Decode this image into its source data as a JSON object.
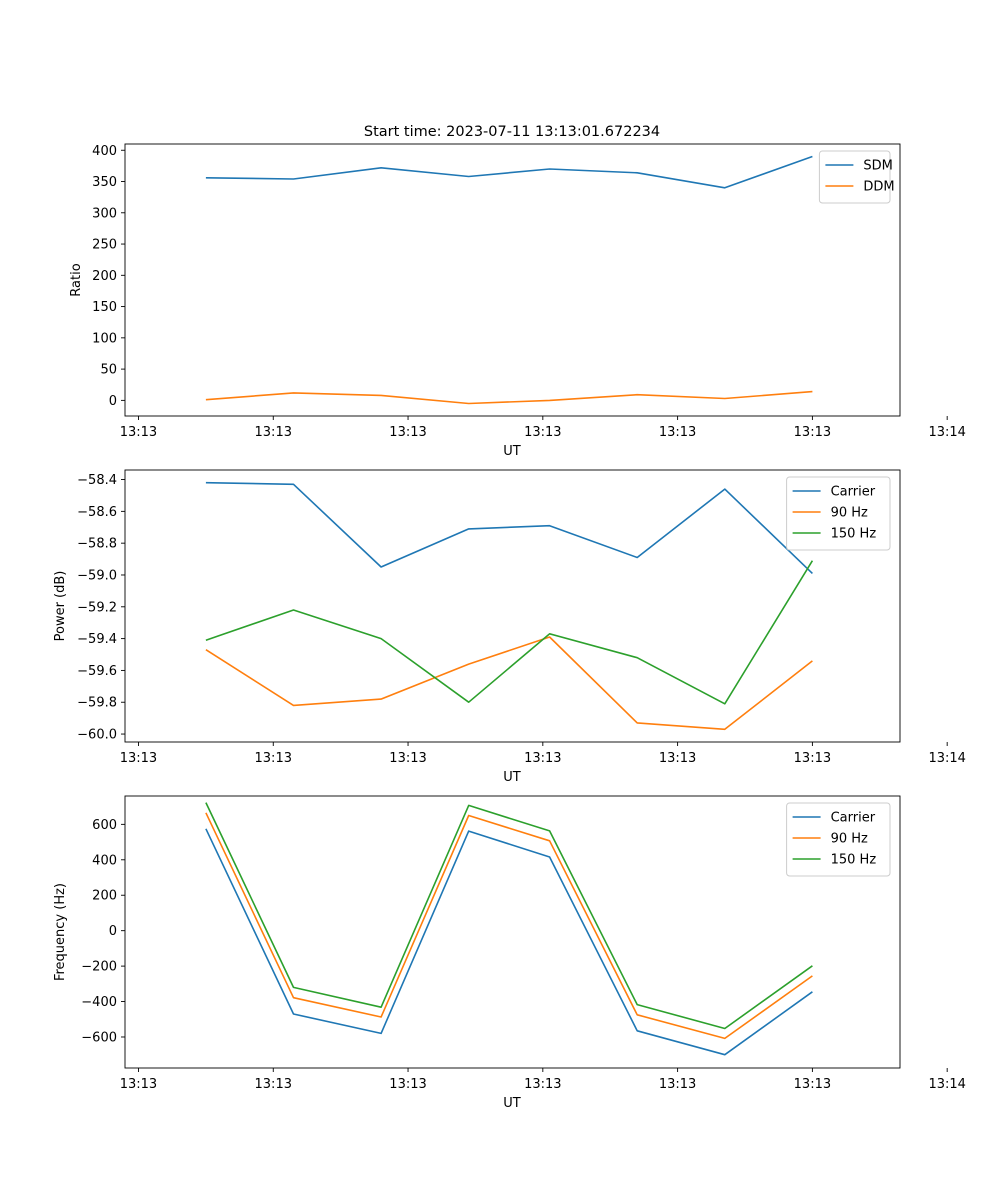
{
  "figure": {
    "title": "Start time: 2023-07-11 13:13:01.672234"
  },
  "chart_data": [
    {
      "type": "line",
      "ylabel": "Ratio",
      "xlabel": "UT",
      "xlim": [
        0,
        11.5
      ],
      "xticks": [
        0.2,
        2.2,
        4.2,
        6.2,
        8.2,
        10.2,
        12.2
      ],
      "xtick_labels": [
        "13:13",
        "13:13",
        "13:13",
        "13:13",
        "13:13",
        "13:13",
        "13:14"
      ],
      "ylim": [
        -25,
        410
      ],
      "yticks": [
        0,
        50,
        100,
        150,
        200,
        250,
        300,
        350,
        400
      ],
      "yticks_labels": [
        "0",
        "50",
        "100",
        "150",
        "200",
        "250",
        "300",
        "350",
        "400"
      ],
      "x": [
        1.2,
        2.5,
        3.8,
        5.1,
        6.3,
        7.6,
        8.9,
        10.2
      ],
      "series": [
        {
          "name": "SDM",
          "color": "#1f77b4",
          "values": [
            356,
            354,
            372,
            358,
            370,
            364,
            340,
            390
          ]
        },
        {
          "name": "DDM",
          "color": "#ff7f0e",
          "values": [
            1,
            12,
            8,
            -5,
            0,
            9,
            3,
            14
          ]
        }
      ],
      "legend": "top-right"
    },
    {
      "type": "line",
      "ylabel": "Power (dB)",
      "xlabel": "UT",
      "xlim": [
        0,
        11.5
      ],
      "xticks": [
        0.2,
        2.2,
        4.2,
        6.2,
        8.2,
        10.2,
        12.2
      ],
      "xtick_labels": [
        "13:13",
        "13:13",
        "13:13",
        "13:13",
        "13:13",
        "13:13",
        "13:14"
      ],
      "ylim": [
        -60.05,
        -58.34
      ],
      "yticks": [
        -60.0,
        -59.8,
        -59.6,
        -59.4,
        -59.2,
        -59.0,
        -58.8,
        -58.6,
        -58.4
      ],
      "yticks_labels": [
        "−60.0",
        "−59.8",
        "−59.6",
        "−59.4",
        "−59.2",
        "−59.0",
        "−58.8",
        "−58.6",
        "−58.4"
      ],
      "x": [
        1.2,
        2.5,
        3.8,
        5.1,
        6.3,
        7.6,
        8.9,
        10.2
      ],
      "series": [
        {
          "name": "Carrier",
          "color": "#1f77b4",
          "values": [
            -58.42,
            -58.43,
            -58.95,
            -58.71,
            -58.69,
            -58.89,
            -58.46,
            -58.99
          ]
        },
        {
          "name": "90 Hz",
          "color": "#ff7f0e",
          "values": [
            -59.47,
            -59.82,
            -59.78,
            -59.56,
            -59.39,
            -59.93,
            -59.97,
            -59.54
          ]
        },
        {
          "name": "150 Hz",
          "color": "#2ca02c",
          "values": [
            -59.41,
            -59.22,
            -59.4,
            -59.8,
            -59.37,
            -59.52,
            -59.81,
            -58.91
          ]
        }
      ],
      "legend": "top-right"
    },
    {
      "type": "line",
      "ylabel": "Frequency (Hz)",
      "xlabel": "UT",
      "xlim": [
        0,
        11.5
      ],
      "xticks": [
        0.2,
        2.2,
        4.2,
        6.2,
        8.2,
        10.2,
        12.2
      ],
      "xtick_labels": [
        "13:13",
        "13:13",
        "13:13",
        "13:13",
        "13:13",
        "13:13",
        "13:14"
      ],
      "ylim": [
        -775,
        760
      ],
      "yticks": [
        -600,
        -400,
        -200,
        0,
        200,
        400,
        600
      ],
      "yticks_labels": [
        "−600",
        "−400",
        "−200",
        "0",
        "200",
        "400",
        "600"
      ],
      "x": [
        1.2,
        2.5,
        3.8,
        5.1,
        6.3,
        7.6,
        8.9,
        10.2
      ],
      "series": [
        {
          "name": "Carrier",
          "color": "#1f77b4",
          "values": [
            575,
            -470,
            -580,
            562,
            416,
            -565,
            -700,
            -345
          ]
        },
        {
          "name": "90 Hz",
          "color": "#ff7f0e",
          "values": [
            665,
            -378,
            -487,
            650,
            507,
            -475,
            -608,
            -255
          ]
        },
        {
          "name": "150 Hz",
          "color": "#2ca02c",
          "values": [
            723,
            -320,
            -432,
            707,
            563,
            -417,
            -552,
            -198
          ]
        }
      ],
      "legend": "top-right"
    }
  ]
}
